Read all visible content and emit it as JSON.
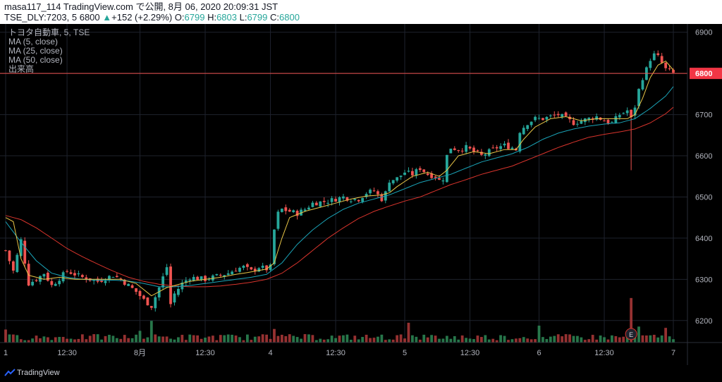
{
  "header": {
    "line1": "masa117_114 TradingView.com で公開, 8月 06, 2020 20:09:31 JST",
    "line2_prefix": "TSE_DLY:7203, 5 6800",
    "change_arrow": "▲",
    "change": "+152 (+2.29%)",
    "o_label": "O:",
    "o_value": "6799",
    "h_label": "H:",
    "h_value": "6803",
    "l_label": "L:",
    "l_value": "6799",
    "c_label": "C:",
    "c_value": "6800"
  },
  "legend": {
    "symbol": "トヨタ自動車, 5, TSE",
    "ma5": "MA (5, close)",
    "ma25": "MA (25, close)",
    "ma50": "MA (50, close)",
    "volume": "出来高"
  },
  "footer": {
    "brand": "TradingView"
  },
  "colors": {
    "up": "#26a69a",
    "down": "#ef5350",
    "ma5": "#e8c547",
    "ma25": "#1aa3b7",
    "ma50": "#d8342c",
    "price_line": "#ef5350",
    "price_tag": "#f23645"
  },
  "chart_data": {
    "type": "candlestick",
    "title": "トヨタ自動車, 5, TSE",
    "ylim": [
      6150,
      6920
    ],
    "y_ticks": [
      "6900",
      "6800",
      "6700",
      "6600",
      "6500",
      "6400",
      "6300",
      "6200"
    ],
    "x_ticks": [
      "1",
      "12:30",
      "8月",
      "12:30",
      "4",
      "12:30",
      "5",
      "12:30",
      "6",
      "12:30",
      "7"
    ],
    "last_price": "6800",
    "earnings_marker": "E",
    "ohlc_path": [
      [
        0,
        6370
      ],
      [
        2,
        6320
      ],
      [
        4,
        6395
      ],
      [
        6,
        6290
      ],
      [
        8,
        6300
      ],
      [
        10,
        6315
      ],
      [
        12,
        6285
      ],
      [
        16,
        6320
      ],
      [
        20,
        6305
      ],
      [
        24,
        6295
      ],
      [
        28,
        6310
      ],
      [
        30,
        6300
      ],
      [
        34,
        6270
      ],
      [
        36,
        6250
      ],
      [
        38,
        6235
      ],
      [
        40,
        6280
      ],
      [
        42,
        6330
      ],
      [
        43,
        6240
      ],
      [
        44,
        6265
      ],
      [
        46,
        6290
      ],
      [
        48,
        6305
      ],
      [
        52,
        6300
      ],
      [
        56,
        6310
      ],
      [
        58,
        6315
      ],
      [
        60,
        6325
      ],
      [
        62,
        6330
      ],
      [
        64,
        6320
      ],
      [
        66,
        6330
      ],
      [
        68,
        6325
      ],
      [
        69,
        6330
      ],
      [
        70,
        6420
      ],
      [
        71,
        6460
      ],
      [
        72,
        6470
      ],
      [
        74,
        6465
      ],
      [
        76,
        6460
      ],
      [
        78,
        6470
      ],
      [
        80,
        6485
      ],
      [
        84,
        6490
      ],
      [
        88,
        6500
      ],
      [
        90,
        6495
      ],
      [
        92,
        6495
      ],
      [
        94,
        6510
      ],
      [
        96,
        6515
      ],
      [
        98,
        6495
      ],
      [
        99,
        6510
      ],
      [
        100,
        6540
      ],
      [
        102,
        6545
      ],
      [
        104,
        6560
      ],
      [
        106,
        6555
      ],
      [
        108,
        6570
      ],
      [
        110,
        6555
      ],
      [
        112,
        6550
      ],
      [
        113,
        6540
      ],
      [
        114,
        6545
      ],
      [
        115,
        6600
      ],
      [
        116,
        6620
      ],
      [
        118,
        6615
      ],
      [
        120,
        6620
      ],
      [
        122,
        6610
      ],
      [
        124,
        6600
      ],
      [
        126,
        6610
      ],
      [
        128,
        6620
      ],
      [
        130,
        6625
      ],
      [
        132,
        6620
      ],
      [
        133,
        6615
      ],
      [
        134,
        6660
      ],
      [
        136,
        6680
      ],
      [
        138,
        6690
      ],
      [
        140,
        6690
      ],
      [
        142,
        6695
      ],
      [
        144,
        6700
      ],
      [
        146,
        6690
      ],
      [
        148,
        6680
      ],
      [
        150,
        6685
      ],
      [
        152,
        6690
      ],
      [
        154,
        6695
      ],
      [
        156,
        6685
      ],
      [
        158,
        6680
      ],
      [
        160,
        6700
      ],
      [
        162,
        6710
      ],
      [
        163,
        6690
      ],
      [
        164,
        6720
      ],
      [
        165,
        6760
      ],
      [
        166,
        6790
      ],
      [
        167,
        6810
      ],
      [
        168,
        6835
      ],
      [
        169,
        6845
      ],
      [
        170,
        6840
      ],
      [
        171,
        6825
      ],
      [
        172,
        6810
      ],
      [
        173,
        6805
      ],
      [
        174,
        6800
      ]
    ],
    "ma_points": {
      "ma5": [
        [
          0,
          6450
        ],
        [
          2,
          6440
        ],
        [
          4,
          6350
        ],
        [
          6,
          6310
        ],
        [
          10,
          6300
        ],
        [
          14,
          6305
        ],
        [
          18,
          6300
        ],
        [
          22,
          6300
        ],
        [
          26,
          6300
        ],
        [
          30,
          6300
        ],
        [
          34,
          6290
        ],
        [
          38,
          6260
        ],
        [
          40,
          6270
        ],
        [
          42,
          6280
        ],
        [
          44,
          6285
        ],
        [
          48,
          6295
        ],
        [
          52,
          6300
        ],
        [
          56,
          6305
        ],
        [
          60,
          6312
        ],
        [
          64,
          6318
        ],
        [
          68,
          6325
        ],
        [
          70,
          6340
        ],
        [
          72,
          6400
        ],
        [
          74,
          6450
        ],
        [
          78,
          6465
        ],
        [
          82,
          6475
        ],
        [
          86,
          6485
        ],
        [
          90,
          6495
        ],
        [
          94,
          6502
        ],
        [
          98,
          6505
        ],
        [
          100,
          6510
        ],
        [
          102,
          6525
        ],
        [
          106,
          6550
        ],
        [
          110,
          6560
        ],
        [
          113,
          6550
        ],
        [
          115,
          6565
        ],
        [
          118,
          6600
        ],
        [
          122,
          6610
        ],
        [
          126,
          6605
        ],
        [
          130,
          6615
        ],
        [
          133,
          6615
        ],
        [
          135,
          6640
        ],
        [
          138,
          6670
        ],
        [
          142,
          6690
        ],
        [
          146,
          6695
        ],
        [
          150,
          6685
        ],
        [
          154,
          6690
        ],
        [
          158,
          6690
        ],
        [
          162,
          6690
        ],
        [
          164,
          6700
        ],
        [
          166,
          6740
        ],
        [
          168,
          6790
        ],
        [
          170,
          6820
        ],
        [
          172,
          6830
        ],
        [
          174,
          6808
        ]
      ],
      "ma25": [
        [
          0,
          6440
        ],
        [
          4,
          6390
        ],
        [
          8,
          6345
        ],
        [
          12,
          6315
        ],
        [
          16,
          6305
        ],
        [
          20,
          6300
        ],
        [
          24,
          6298
        ],
        [
          28,
          6298
        ],
        [
          32,
          6296
        ],
        [
          36,
          6290
        ],
        [
          40,
          6282
        ],
        [
          44,
          6282
        ],
        [
          48,
          6285
        ],
        [
          52,
          6290
        ],
        [
          56,
          6295
        ],
        [
          60,
          6300
        ],
        [
          64,
          6305
        ],
        [
          68,
          6312
        ],
        [
          72,
          6340
        ],
        [
          76,
          6385
        ],
        [
          80,
          6420
        ],
        [
          84,
          6448
        ],
        [
          88,
          6470
        ],
        [
          92,
          6485
        ],
        [
          96,
          6495
        ],
        [
          100,
          6505
        ],
        [
          104,
          6520
        ],
        [
          108,
          6535
        ],
        [
          112,
          6545
        ],
        [
          116,
          6555
        ],
        [
          120,
          6570
        ],
        [
          124,
          6585
        ],
        [
          128,
          6595
        ],
        [
          132,
          6605
        ],
        [
          136,
          6620
        ],
        [
          140,
          6640
        ],
        [
          144,
          6655
        ],
        [
          148,
          6665
        ],
        [
          152,
          6672
        ],
        [
          156,
          6677
        ],
        [
          160,
          6680
        ],
        [
          164,
          6690
        ],
        [
          168,
          6715
        ],
        [
          172,
          6745
        ],
        [
          174,
          6768
        ]
      ],
      "ma50": [
        [
          0,
          6455
        ],
        [
          4,
          6445
        ],
        [
          8,
          6425
        ],
        [
          12,
          6400
        ],
        [
          16,
          6375
        ],
        [
          20,
          6355
        ],
        [
          24,
          6337
        ],
        [
          28,
          6320
        ],
        [
          32,
          6305
        ],
        [
          36,
          6295
        ],
        [
          40,
          6288
        ],
        [
          44,
          6284
        ],
        [
          48,
          6282
        ],
        [
          52,
          6282
        ],
        [
          56,
          6284
        ],
        [
          60,
          6288
        ],
        [
          64,
          6293
        ],
        [
          68,
          6300
        ],
        [
          72,
          6315
        ],
        [
          76,
          6340
        ],
        [
          80,
          6370
        ],
        [
          84,
          6400
        ],
        [
          88,
          6425
        ],
        [
          92,
          6448
        ],
        [
          96,
          6465
        ],
        [
          100,
          6478
        ],
        [
          104,
          6490
        ],
        [
          108,
          6500
        ],
        [
          112,
          6515
        ],
        [
          116,
          6530
        ],
        [
          120,
          6542
        ],
        [
          124,
          6555
        ],
        [
          128,
          6565
        ],
        [
          132,
          6575
        ],
        [
          136,
          6590
        ],
        [
          140,
          6605
        ],
        [
          144,
          6620
        ],
        [
          148,
          6633
        ],
        [
          152,
          6645
        ],
        [
          156,
          6652
        ],
        [
          160,
          6658
        ],
        [
          164,
          6665
        ],
        [
          168,
          6680
        ],
        [
          172,
          6702
        ],
        [
          174,
          6718
        ]
      ]
    },
    "volume_spikes": [
      [
        0,
        0.5
      ],
      [
        35,
        0.45
      ],
      [
        38,
        0.9
      ],
      [
        70,
        0.6
      ],
      [
        105,
        0.7
      ],
      [
        139,
        0.7
      ],
      [
        163,
        1.9
      ],
      [
        165,
        0.6
      ],
      [
        172,
        0.5
      ]
    ]
  }
}
